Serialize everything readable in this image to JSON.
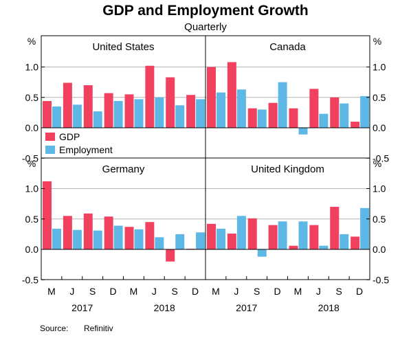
{
  "chart_data": {
    "type": "bar",
    "title": "GDP and Employment Growth",
    "subtitle": "Quarterly",
    "y_unit": "%",
    "ylim": [
      -0.5,
      1.5
    ],
    "yticks": [
      "-0.5",
      "0.0",
      "0.5",
      "1.0"
    ],
    "grid": true,
    "categories": [
      "M",
      "J",
      "S",
      "D",
      "M",
      "J",
      "S",
      "D"
    ],
    "years": [
      "2017",
      "2018"
    ],
    "legend": {
      "placement": "top-left panel, bottom",
      "entries": [
        "GDP",
        "Employment"
      ]
    },
    "colors": {
      "gdp": "#f2415f",
      "employment": "#5db8e6",
      "grid": "#b4b4b4",
      "axis": "#000000"
    },
    "panels": [
      {
        "name": "United States",
        "series": [
          {
            "name": "GDP",
            "values": [
              0.44,
              0.74,
              0.7,
              0.57,
              0.55,
              1.02,
              0.83,
              0.54
            ]
          },
          {
            "name": "Employment",
            "values": [
              0.35,
              0.38,
              0.27,
              0.44,
              0.47,
              0.5,
              0.37,
              0.47
            ]
          }
        ]
      },
      {
        "name": "Canada",
        "series": [
          {
            "name": "GDP",
            "values": [
              1.0,
              1.08,
              0.32,
              0.41,
              0.32,
              0.64,
              0.5,
              0.1
            ]
          },
          {
            "name": "Employment",
            "values": [
              0.58,
              0.63,
              0.3,
              0.75,
              -0.11,
              0.23,
              0.4,
              0.52
            ]
          }
        ]
      },
      {
        "name": "Germany",
        "series": [
          {
            "name": "GDP",
            "values": [
              1.12,
              0.55,
              0.59,
              0.54,
              0.37,
              0.45,
              -0.2,
              0.01
            ]
          },
          {
            "name": "Employment",
            "values": [
              0.34,
              0.32,
              0.31,
              0.39,
              0.33,
              0.2,
              0.25,
              0.28
            ]
          }
        ]
      },
      {
        "name": "United Kingdom",
        "series": [
          {
            "name": "GDP",
            "values": [
              0.42,
              0.26,
              0.51,
              0.4,
              0.06,
              0.4,
              0.7,
              0.21
            ]
          },
          {
            "name": "Employment",
            "values": [
              0.34,
              0.55,
              -0.12,
              0.46,
              0.46,
              0.06,
              0.25,
              0.68
            ]
          }
        ]
      }
    ],
    "source_label": "Source:",
    "source_value": "Refinitiv"
  }
}
